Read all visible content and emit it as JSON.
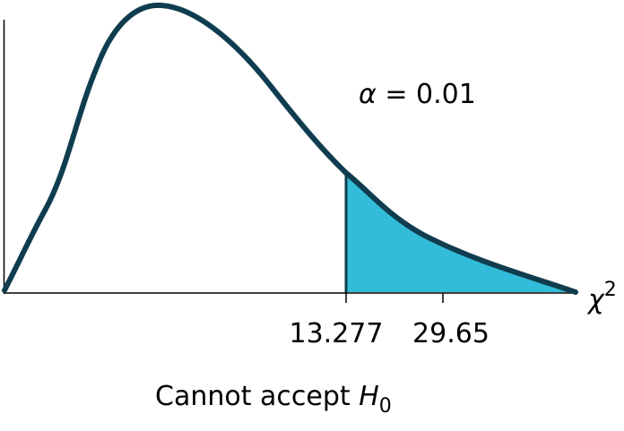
{
  "diagram": {
    "distribution": "chi-square",
    "significance_label": {
      "symbol": "α",
      "text": " = 0.01"
    },
    "axis": {
      "symbol": "χ",
      "exponent": "2"
    },
    "ticks": [
      {
        "label": "13.277"
      },
      {
        "label": "29.65"
      }
    ],
    "conclusion": {
      "text": "Cannot accept ",
      "hypothesis": "H",
      "hypothesis_subscript": "0"
    },
    "colors": {
      "curve": "#0f3d4f",
      "rejection_region": "#33bcd9",
      "axes": "#000000"
    }
  }
}
